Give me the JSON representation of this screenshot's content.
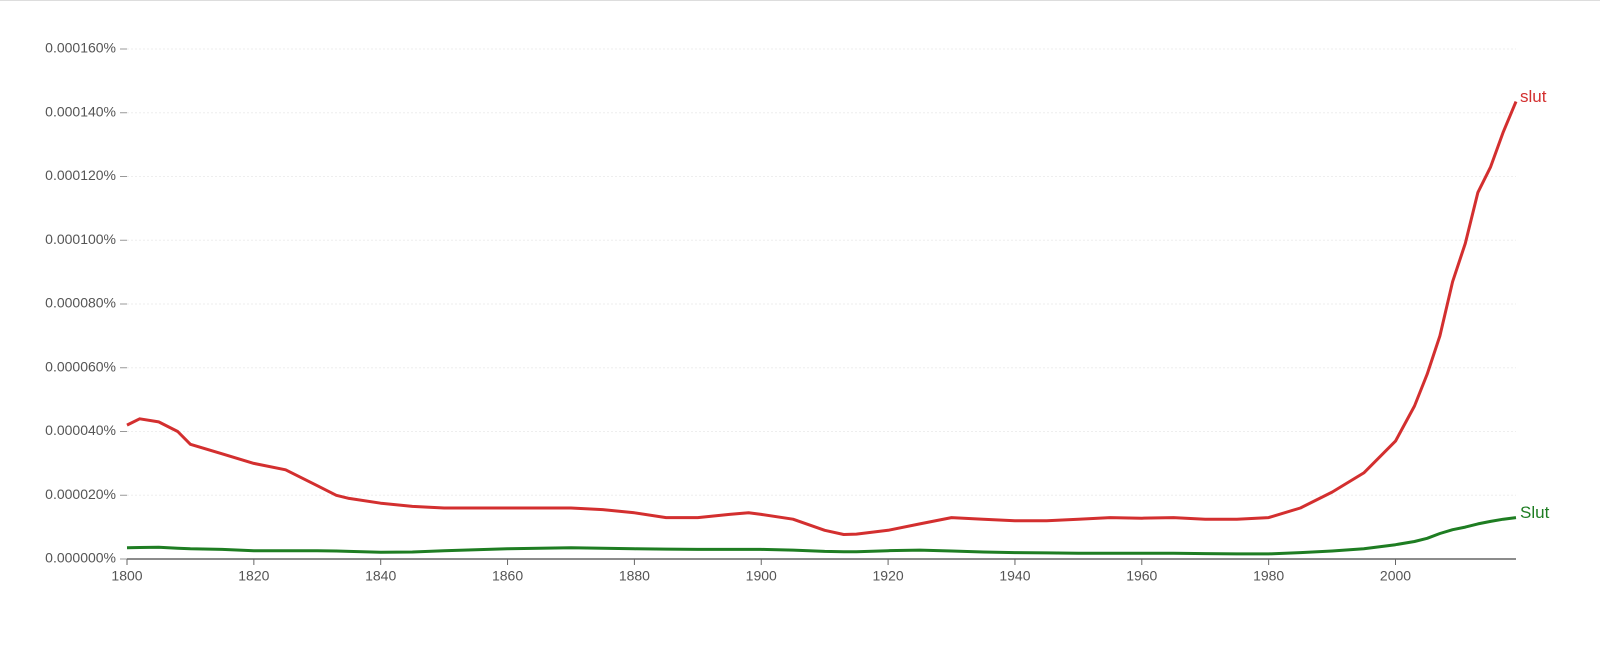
{
  "chart_data": {
    "type": "line",
    "x": [
      1800,
      1802,
      1805,
      1808,
      1810,
      1815,
      1820,
      1825,
      1830,
      1833,
      1835,
      1840,
      1845,
      1850,
      1855,
      1860,
      1865,
      1870,
      1875,
      1880,
      1885,
      1890,
      1895,
      1898,
      1900,
      1905,
      1910,
      1913,
      1915,
      1920,
      1925,
      1930,
      1935,
      1940,
      1945,
      1950,
      1955,
      1960,
      1965,
      1970,
      1975,
      1980,
      1985,
      1990,
      1995,
      2000,
      2003,
      2005,
      2007,
      2009,
      2011,
      2013,
      2015,
      2017,
      2019
    ],
    "series": [
      {
        "name": "slut",
        "color": "#d32f2f",
        "values": [
          4.2e-05,
          4.4e-05,
          4.3e-05,
          4e-05,
          3.6e-05,
          3.3e-05,
          3e-05,
          2.8e-05,
          2.3e-05,
          2e-05,
          1.9e-05,
          1.75e-05,
          1.65e-05,
          1.6e-05,
          1.6e-05,
          1.6e-05,
          1.6e-05,
          1.6e-05,
          1.55e-05,
          1.45e-05,
          1.3e-05,
          1.3e-05,
          1.4e-05,
          1.45e-05,
          1.4e-05,
          1.25e-05,
          9e-06,
          7.7e-06,
          7.8e-06,
          9e-06,
          1.1e-05,
          1.3e-05,
          1.25e-05,
          1.2e-05,
          1.2e-05,
          1.25e-05,
          1.3e-05,
          1.28e-05,
          1.3e-05,
          1.25e-05,
          1.25e-05,
          1.3e-05,
          1.6e-05,
          2.1e-05,
          2.7e-05,
          3.7e-05,
          4.8e-05,
          5.8e-05,
          7e-05,
          8.7e-05,
          9.9e-05,
          0.000115,
          0.000123,
          0.000134,
          0.0001435
        ]
      },
      {
        "name": "Slut",
        "color": "#1e7d22",
        "values": [
          3.5e-06,
          3.6e-06,
          3.7e-06,
          3.4e-06,
          3.2e-06,
          3e-06,
          2.6e-06,
          2.6e-06,
          2.6e-06,
          2.5e-06,
          2.4e-06,
          2.1e-06,
          2.2e-06,
          2.6e-06,
          2.9e-06,
          3.2e-06,
          3.4e-06,
          3.5e-06,
          3.4e-06,
          3.2e-06,
          3.1e-06,
          3e-06,
          3e-06,
          3e-06,
          3e-06,
          2.8e-06,
          2.4e-06,
          2.3e-06,
          2.3e-06,
          2.6e-06,
          2.8e-06,
          2.5e-06,
          2.2e-06,
          2e-06,
          1.9e-06,
          1.8e-06,
          1.8e-06,
          1.8e-06,
          1.8e-06,
          1.7e-06,
          1.6e-06,
          1.6e-06,
          2e-06,
          2.5e-06,
          3.2e-06,
          4.5e-06,
          5.5e-06,
          6.5e-06,
          8e-06,
          9.2e-06,
          1e-05,
          1.1e-05,
          1.18e-05,
          1.25e-05,
          1.3e-05
        ]
      }
    ],
    "xlim": [
      1800,
      2019
    ],
    "xticks": [
      1800,
      1820,
      1840,
      1860,
      1880,
      1900,
      1920,
      1940,
      1960,
      1980,
      2000
    ],
    "ylim": [
      0,
      0.00016
    ],
    "yticks": [
      {
        "value": 0,
        "label": "0.000000%"
      },
      {
        "value": 2e-05,
        "label": "0.000020%"
      },
      {
        "value": 4e-05,
        "label": "0.000040%"
      },
      {
        "value": 6e-05,
        "label": "0.000060%"
      },
      {
        "value": 8e-05,
        "label": "0.000080%"
      },
      {
        "value": 0.0001,
        "label": "0.000100%"
      },
      {
        "value": 0.00012,
        "label": "0.000120%"
      },
      {
        "value": 0.00014,
        "label": "0.000140%"
      },
      {
        "value": 0.00016,
        "label": "0.000160%"
      }
    ],
    "grid": true
  }
}
